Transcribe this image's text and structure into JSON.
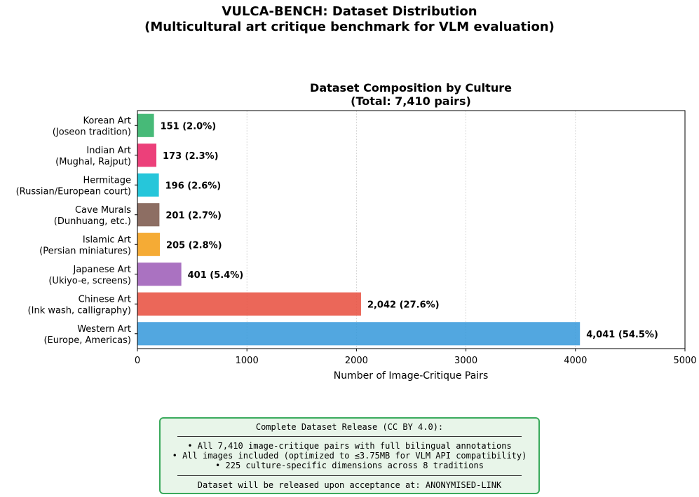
{
  "suptitle": {
    "line1": "VULCA-BENCH: Dataset Distribution",
    "line2": "(Multicultural art critique benchmark for VLM evaluation)"
  },
  "chart_data": {
    "type": "bar",
    "orientation": "horizontal",
    "title_lines": [
      "Dataset Composition by Culture",
      "(Total: 7,410 pairs)"
    ],
    "xlabel": "Number of Image-Critique Pairs",
    "ylabel": "",
    "xlim": [
      0,
      5000
    ],
    "xticks": [
      0,
      1000,
      2000,
      3000,
      4000,
      5000
    ],
    "grid": "x-dotted",
    "bars": [
      {
        "label1": "Western Art",
        "label2": "(Europe, Americas)",
        "value": 4041,
        "value_label": "4,041 (54.5%)",
        "color": "#3498db"
      },
      {
        "label1": "Chinese Art",
        "label2": "(Ink wash, calligraphy)",
        "value": 2042,
        "value_label": "2,042 (27.6%)",
        "color": "#e74c3c"
      },
      {
        "label1": "Japanese Art",
        "label2": "(Ukiyo-e, screens)",
        "value": 401,
        "value_label": "401 (5.4%)",
        "color": "#9b59b6"
      },
      {
        "label1": "Islamic Art",
        "label2": "(Persian miniatures)",
        "value": 205,
        "value_label": "205 (2.8%)",
        "color": "#f39c12"
      },
      {
        "label1": "Cave Murals",
        "label2": "(Dunhuang, etc.)",
        "value": 201,
        "value_label": "201 (2.7%)",
        "color": "#795548"
      },
      {
        "label1": "Hermitage",
        "label2": "(Russian/European court)",
        "value": 196,
        "value_label": "196 (2.6%)",
        "color": "#00bcd4"
      },
      {
        "label1": "Indian Art",
        "label2": "(Mughal, Rajput)",
        "value": 173,
        "value_label": "173 (2.3%)",
        "color": "#e91e63"
      },
      {
        "label1": "Korean Art",
        "label2": "(Joseon tradition)",
        "value": 151,
        "value_label": "151 (2.0%)",
        "color": "#27ae60"
      }
    ]
  },
  "note": {
    "heading": "Complete Dataset Release (CC BY 4.0):",
    "bullets": [
      "• All 7,410 image-critique pairs with full bilingual annotations",
      "• All images included (optimized to ≤3.75MB for VLM API compatibility)",
      "• 225 culture-specific dimensions across 8 traditions"
    ],
    "footer": "Dataset will be released upon acceptance at: ANONYMISED-LINK",
    "border_color": "#3aaa5c",
    "background": "#e8f5e9"
  }
}
